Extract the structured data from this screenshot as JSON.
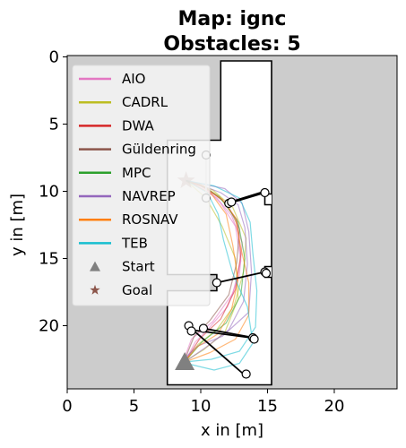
{
  "chart_data": {
    "type": "line",
    "title_line1": "Map: ignc",
    "title_line2": "Obstacles: 5",
    "xlabel": "x in [m]",
    "ylabel": "y in [m]",
    "xlim": [
      0,
      24.7
    ],
    "ylim": [
      24.7,
      -0.1
    ],
    "y_inverted": true,
    "x_ticks": [
      0,
      5,
      10,
      15,
      20
    ],
    "y_ticks": [
      0,
      5,
      10,
      15,
      20
    ],
    "occupied_color": "#cccccc",
    "free_color": "#ffffff",
    "legend_placement": "upper-left",
    "free_space_outline": [
      [
        11.5,
        0.3
      ],
      [
        15.3,
        0.3
      ],
      [
        15.3,
        24.4
      ],
      [
        7.5,
        24.4
      ],
      [
        7.5,
        17.4
      ],
      [
        11.2,
        17.4
      ],
      [
        11.2,
        16.2
      ],
      [
        7.5,
        16.2
      ],
      [
        7.5,
        6.2
      ],
      [
        11.5,
        6.2
      ]
    ],
    "free_space_notches": [
      [
        [
          15.3,
          10.2
        ],
        [
          14.8,
          10.2
        ],
        [
          14.8,
          11.0
        ],
        [
          15.3,
          11.0
        ]
      ],
      [
        [
          15.3,
          15.6
        ],
        [
          14.8,
          15.6
        ],
        [
          14.8,
          16.4
        ],
        [
          15.3,
          16.4
        ]
      ]
    ],
    "series": [
      {
        "name": "AIO",
        "color": "#e377c2",
        "paths": [
          [
            [
              8.8,
              22.7
            ],
            [
              9.6,
              21.2
            ],
            [
              10.6,
              20.2
            ],
            [
              12.0,
              18.6
            ],
            [
              12.9,
              16.2
            ],
            [
              13.1,
              13.8
            ],
            [
              12.3,
              11.8
            ],
            [
              11.2,
              10.5
            ],
            [
              10.1,
              9.8
            ],
            [
              8.9,
              9.2
            ]
          ],
          [
            [
              8.6,
              22.9
            ],
            [
              9.3,
              21.0
            ],
            [
              10.9,
              19.7
            ],
            [
              12.4,
              17.6
            ],
            [
              13.0,
              15.2
            ],
            [
              12.6,
              12.6
            ],
            [
              11.5,
              10.9
            ],
            [
              10.3,
              9.7
            ],
            [
              8.9,
              9.2
            ]
          ]
        ]
      },
      {
        "name": "CADRL",
        "color": "#bcbd22",
        "paths": [
          [
            [
              8.8,
              22.7
            ],
            [
              9.8,
              21.4
            ],
            [
              11.2,
              20.3
            ],
            [
              12.5,
              18.5
            ],
            [
              13.2,
              16.0
            ],
            [
              13.4,
              13.5
            ],
            [
              12.4,
              11.2
            ],
            [
              10.9,
              9.9
            ],
            [
              8.9,
              9.2
            ]
          ],
          [
            [
              8.9,
              22.6
            ],
            [
              10.2,
              21.8
            ],
            [
              11.8,
              20.5
            ],
            [
              12.8,
              18.0
            ],
            [
              12.6,
              15.0
            ],
            [
              11.6,
              12.6
            ],
            [
              10.4,
              10.5
            ],
            [
              8.9,
              9.2
            ]
          ]
        ]
      },
      {
        "name": "DWA",
        "color": "#d62728",
        "paths": [
          [
            [
              8.8,
              22.7
            ],
            [
              9.9,
              21.0
            ],
            [
              11.5,
              19.5
            ],
            [
              12.6,
              17.3
            ],
            [
              13.0,
              14.7
            ],
            [
              12.7,
              12.1
            ],
            [
              11.6,
              10.6
            ],
            [
              10.0,
              9.6
            ],
            [
              8.9,
              9.2
            ]
          ]
        ]
      },
      {
        "name": "Güldenring",
        "color": "#8c564b",
        "paths": [
          [
            [
              8.7,
              22.8
            ],
            [
              9.5,
              20.8
            ],
            [
              10.7,
              19.6
            ],
            [
              12.1,
              17.7
            ],
            [
              12.7,
              15.3
            ],
            [
              12.9,
              12.8
            ],
            [
              12.0,
              11.0
            ],
            [
              10.5,
              9.8
            ],
            [
              8.9,
              9.2
            ]
          ]
        ]
      },
      {
        "name": "MPC",
        "color": "#2ca02c",
        "paths": [
          [
            [
              8.8,
              22.7
            ],
            [
              10.1,
              21.2
            ],
            [
              11.9,
              19.8
            ],
            [
              13.0,
              17.7
            ],
            [
              13.3,
              15.0
            ],
            [
              12.8,
              12.3
            ],
            [
              11.4,
              10.4
            ],
            [
              10.0,
              9.5
            ],
            [
              8.9,
              9.2
            ]
          ]
        ]
      },
      {
        "name": "NAVREP",
        "color": "#9467bd",
        "paths": [
          [
            [
              8.8,
              22.7
            ],
            [
              10.4,
              21.6
            ],
            [
              12.1,
              20.3
            ],
            [
              13.2,
              18.2
            ],
            [
              13.5,
              15.4
            ],
            [
              13.3,
              12.7
            ],
            [
              12.8,
              11.0
            ],
            [
              11.5,
              10.1
            ],
            [
              9.9,
              9.5
            ],
            [
              8.9,
              9.2
            ]
          ],
          [
            [
              8.7,
              22.5
            ],
            [
              9.8,
              21.5
            ],
            [
              11.6,
              20.8
            ],
            [
              13.6,
              19.0
            ],
            [
              13.8,
              16.0
            ],
            [
              13.6,
              13.0
            ],
            [
              13.1,
              10.9
            ],
            [
              11.8,
              9.8
            ],
            [
              8.9,
              9.2
            ]
          ]
        ]
      },
      {
        "name": "ROSNAV",
        "color": "#ff7f0e",
        "paths": [
          [
            [
              8.8,
              22.7
            ],
            [
              9.7,
              21.6
            ],
            [
              11.3,
              20.6
            ],
            [
              12.3,
              18.8
            ],
            [
              12.8,
              16.6
            ],
            [
              12.4,
              14.0
            ],
            [
              11.9,
              11.7
            ],
            [
              10.8,
              10.2
            ],
            [
              8.9,
              9.2
            ]
          ],
          [
            [
              8.8,
              22.7
            ],
            [
              10.7,
              22.0
            ],
            [
              12.6,
              21.0
            ],
            [
              13.6,
              19.2
            ],
            [
              13.6,
              16.8
            ],
            [
              13.0,
              14.2
            ],
            [
              12.6,
              12.0
            ],
            [
              11.6,
              10.6
            ],
            [
              10.2,
              9.6
            ],
            [
              8.9,
              9.2
            ]
          ]
        ]
      },
      {
        "name": "TEB",
        "color": "#17becf",
        "paths": [
          [
            [
              8.8,
              22.7
            ],
            [
              10.8,
              22.5
            ],
            [
              12.9,
              21.9
            ],
            [
              14.1,
              20.1
            ],
            [
              14.2,
              17.4
            ],
            [
              13.9,
              14.6
            ],
            [
              13.7,
              12.3
            ],
            [
              12.9,
              10.5
            ],
            [
              11.0,
              9.6
            ],
            [
              8.9,
              9.2
            ]
          ],
          [
            [
              8.9,
              22.8
            ],
            [
              11.0,
              23.3
            ],
            [
              12.9,
              22.8
            ],
            [
              13.9,
              21.3
            ],
            [
              13.5,
              18.6
            ],
            [
              12.4,
              16.1
            ],
            [
              11.7,
              13.6
            ],
            [
              11.3,
              11.7
            ],
            [
              10.5,
              10.1
            ],
            [
              8.9,
              9.2
            ]
          ]
        ]
      }
    ],
    "obstacle_paths": [
      {
        "points": [
          [
            10.4,
            7.3
          ],
          [
            10.4,
            10.5
          ]
        ],
        "color": "#dddddd"
      },
      {
        "points": [
          [
            12.2,
            10.8
          ],
          [
            14.8,
            10.0
          ]
        ],
        "color": "#000000"
      },
      {
        "points": [
          [
            12.1,
            10.9
          ],
          [
            14.8,
            10.1
          ]
        ],
        "color": "#000000"
      },
      {
        "points": [
          [
            11.2,
            16.8
          ],
          [
            14.8,
            16.0
          ]
        ],
        "color": "#000000"
      },
      {
        "points": [
          [
            9.2,
            20.3
          ],
          [
            13.8,
            20.9
          ]
        ],
        "color": "#000000"
      },
      {
        "points": [
          [
            9.4,
            20.3
          ],
          [
            13.2,
            23.6
          ]
        ],
        "color": "#000000"
      },
      {
        "points": [
          [
            10.2,
            20.2
          ],
          [
            14.0,
            20.9
          ]
        ],
        "color": "#000000"
      }
    ],
    "obstacle_markers": [
      [
        10.4,
        7.3
      ],
      [
        10.4,
        10.5
      ],
      [
        12.1,
        10.9
      ],
      [
        12.3,
        10.8
      ],
      [
        14.8,
        10.1
      ],
      [
        11.2,
        16.8
      ],
      [
        14.8,
        16.0
      ],
      [
        14.9,
        16.1
      ],
      [
        9.1,
        20.0
      ],
      [
        9.3,
        20.4
      ],
      [
        10.2,
        20.2
      ],
      [
        13.9,
        20.9
      ],
      [
        14.0,
        21.0
      ],
      [
        13.4,
        23.6
      ]
    ],
    "start": {
      "name": "Start",
      "x": 8.8,
      "y": 22.7,
      "color": "#808080"
    },
    "goal": {
      "name": "Goal",
      "x": 8.9,
      "y": 9.2,
      "color": "#8c564b"
    }
  }
}
